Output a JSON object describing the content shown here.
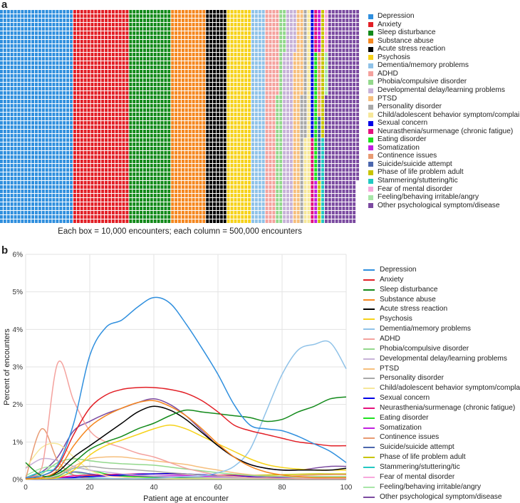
{
  "panels": {
    "a": "a",
    "b": "b"
  },
  "colors": [
    "#2f8fde",
    "#e21f26",
    "#128a1a",
    "#f5871f",
    "#000000",
    "#f6d21a",
    "#8fc2e8",
    "#f4a29e",
    "#93d88c",
    "#c7b2d8",
    "#f6bf7d",
    "#a9a9a9",
    "#f6e79a",
    "#0000e6",
    "#e5127d",
    "#1fe21f",
    "#c21fe0",
    "#e89a72",
    "#4c67ad",
    "#c8c400",
    "#23c8c2",
    "#f7a8dc",
    "#a8e6a8",
    "#7b4aa0"
  ],
  "chart_data": [
    {
      "type": "waffle",
      "caption": "Each box = 10,000 encounters; each column = 500,000 encounters",
      "rows": 50,
      "categories": [
        "Depression",
        "Anxiety",
        "Sleep disturbance",
        "Substance abuse",
        "Acute stress reaction",
        "Psychosis",
        "Dementia/memory problems",
        "ADHD",
        "Phobia/compulsive disorder",
        "Developmental delay/learning problems",
        "PTSD",
        "Personality disorder",
        "Child/adolescent behavior symptom/complaint",
        "Sexual concern",
        "Neurasthenia/surmenage (chronic fatigue)",
        "Eating disorder",
        "Somatization",
        "Continence issues",
        "Suicide/suicide attempt",
        "Phase of life problem adult",
        "Stammering/stuttering/tic",
        "Fear of mental disorder",
        "Feeling/behaving irritable/angry",
        "Other psychological symptom/disease"
      ],
      "boxes": [
        1050,
        800,
        600,
        500,
        300,
        350,
        200,
        170,
        90,
        150,
        110,
        60,
        70,
        30,
        30,
        30,
        20,
        15,
        15,
        40,
        20,
        10,
        10,
        470
      ]
    },
    {
      "type": "line",
      "xlabel": "Patient age at encounter",
      "ylabel": "Percent of encounters",
      "xlim": [
        0,
        100
      ],
      "ylim": [
        0,
        6
      ],
      "xticks": [
        0,
        20,
        40,
        60,
        80,
        100
      ],
      "yticks": [
        0,
        1,
        2,
        3,
        4,
        5,
        6
      ],
      "ytick_labels": [
        "0%",
        "1%",
        "2%",
        "3%",
        "4%",
        "5%",
        "6%"
      ],
      "x": [
        0,
        5,
        10,
        15,
        20,
        25,
        30,
        35,
        40,
        45,
        50,
        55,
        60,
        65,
        70,
        75,
        80,
        85,
        90,
        95,
        100
      ],
      "series": [
        {
          "name": "Depression",
          "values": [
            0.05,
            0.1,
            0.4,
            1.5,
            3.3,
            4.05,
            4.25,
            4.6,
            4.85,
            4.7,
            4.15,
            3.5,
            2.8,
            2.0,
            1.45,
            1.35,
            1.3,
            1.15,
            0.95,
            0.75,
            0.45
          ]
        },
        {
          "name": "Anxiety",
          "values": [
            0.05,
            0.1,
            0.35,
            1.2,
            1.9,
            2.25,
            2.4,
            2.45,
            2.45,
            2.4,
            2.3,
            2.1,
            1.8,
            1.45,
            1.3,
            1.2,
            1.1,
            1.0,
            0.95,
            0.9,
            0.9
          ]
        },
        {
          "name": "Sleep disturbance",
          "values": [
            0.45,
            0.1,
            0.15,
            0.45,
            0.8,
            1.0,
            1.15,
            1.35,
            1.5,
            1.7,
            1.85,
            1.8,
            1.75,
            1.7,
            1.65,
            1.55,
            1.6,
            1.8,
            1.95,
            2.15,
            2.2
          ]
        },
        {
          "name": "Substance abuse",
          "values": [
            0.02,
            0.05,
            0.25,
            0.9,
            1.4,
            1.7,
            1.9,
            2.05,
            2.1,
            1.95,
            1.7,
            1.35,
            0.95,
            0.6,
            0.35,
            0.2,
            0.12,
            0.08,
            0.05,
            0.05,
            0.05
          ]
        },
        {
          "name": "Acute stress reaction",
          "values": [
            0.02,
            0.05,
            0.2,
            0.6,
            0.9,
            1.2,
            1.5,
            1.8,
            1.95,
            1.85,
            1.6,
            1.25,
            0.9,
            0.6,
            0.4,
            0.3,
            0.25,
            0.25,
            0.25,
            0.25,
            0.3
          ]
        },
        {
          "name": "Psychosis",
          "values": [
            0.01,
            0.02,
            0.05,
            0.25,
            0.65,
            0.9,
            1.05,
            1.2,
            1.35,
            1.45,
            1.35,
            1.15,
            0.95,
            0.75,
            0.55,
            0.4,
            0.32,
            0.28,
            0.25,
            0.25,
            0.25
          ]
        },
        {
          "name": "Dementia/memory problems",
          "values": [
            0.02,
            0.02,
            0.02,
            0.02,
            0.02,
            0.02,
            0.02,
            0.02,
            0.03,
            0.05,
            0.08,
            0.1,
            0.18,
            0.35,
            0.8,
            1.8,
            2.8,
            3.45,
            3.6,
            3.65,
            2.95
          ]
        },
        {
          "name": "ADHD",
          "values": [
            0.05,
            0.3,
            3.1,
            2.1,
            1.3,
            1.0,
            0.85,
            0.7,
            0.6,
            0.45,
            0.3,
            0.2,
            0.12,
            0.08,
            0.05,
            0.04,
            0.03,
            0.02,
            0.02,
            0.02,
            0.02
          ]
        },
        {
          "name": "Phobia/compulsive disorder",
          "values": [
            0.02,
            0.15,
            0.45,
            0.55,
            0.5,
            0.45,
            0.42,
            0.4,
            0.38,
            0.33,
            0.28,
            0.23,
            0.18,
            0.14,
            0.11,
            0.09,
            0.08,
            0.07,
            0.06,
            0.06,
            0.06
          ]
        },
        {
          "name": "Developmental delay/learning problems",
          "values": [
            0.3,
            0.55,
            0.5,
            0.35,
            0.25,
            0.2,
            0.15,
            0.12,
            0.1,
            0.08,
            0.07,
            0.06,
            0.05,
            0.04,
            0.04,
            0.03,
            0.03,
            0.03,
            0.03,
            0.03,
            0.03
          ]
        },
        {
          "name": "PTSD",
          "values": [
            0.01,
            0.05,
            0.15,
            0.35,
            0.55,
            0.6,
            0.6,
            0.55,
            0.5,
            0.45,
            0.4,
            0.32,
            0.25,
            0.18,
            0.13,
            0.1,
            0.08,
            0.06,
            0.05,
            0.05,
            0.05
          ]
        },
        {
          "name": "Personality disorder",
          "values": [
            0.01,
            0.02,
            0.1,
            0.3,
            0.35,
            0.3,
            0.28,
            0.25,
            0.22,
            0.18,
            0.15,
            0.12,
            0.09,
            0.07,
            0.05,
            0.04,
            0.03,
            0.03,
            0.02,
            0.02,
            0.02
          ]
        },
        {
          "name": "Child/adolescent behavior symptom/complaint",
          "values": [
            0.3,
            0.85,
            0.95,
            0.6,
            0.25,
            0.1,
            0.06,
            0.04,
            0.03,
            0.02,
            0.02,
            0.02,
            0.02,
            0.02,
            0.02,
            0.02,
            0.02,
            0.02,
            0.02,
            0.02,
            0.02
          ]
        },
        {
          "name": "Sexual concern",
          "values": [
            0.01,
            0.01,
            0.02,
            0.05,
            0.08,
            0.1,
            0.12,
            0.14,
            0.15,
            0.16,
            0.15,
            0.13,
            0.11,
            0.09,
            0.07,
            0.05,
            0.04,
            0.03,
            0.02,
            0.02,
            0.02
          ]
        },
        {
          "name": "Neurasthenia/surmenage (chronic fatigue)",
          "values": [
            0.01,
            0.02,
            0.05,
            0.1,
            0.12,
            0.13,
            0.14,
            0.15,
            0.15,
            0.15,
            0.14,
            0.13,
            0.12,
            0.11,
            0.1,
            0.09,
            0.08,
            0.07,
            0.06,
            0.06,
            0.06
          ]
        },
        {
          "name": "Eating disorder",
          "values": [
            0.01,
            0.02,
            0.08,
            0.3,
            0.25,
            0.15,
            0.1,
            0.07,
            0.05,
            0.04,
            0.03,
            0.03,
            0.02,
            0.02,
            0.02,
            0.02,
            0.02,
            0.02,
            0.02,
            0.02,
            0.02
          ]
        },
        {
          "name": "Somatization",
          "values": [
            0.01,
            0.02,
            0.04,
            0.06,
            0.08,
            0.09,
            0.1,
            0.1,
            0.1,
            0.1,
            0.1,
            0.09,
            0.08,
            0.07,
            0.06,
            0.05,
            0.05,
            0.05,
            0.05,
            0.05,
            0.05
          ]
        },
        {
          "name": "Continence issues",
          "values": [
            0.02,
            1.35,
            0.5,
            0.12,
            0.03,
            0.02,
            0.02,
            0.02,
            0.02,
            0.02,
            0.02,
            0.03,
            0.03,
            0.04,
            0.05,
            0.06,
            0.08,
            0.1,
            0.12,
            0.13,
            0.13
          ]
        },
        {
          "name": "Suicide/suicide attempt",
          "values": [
            0.01,
            0.01,
            0.05,
            0.2,
            0.15,
            0.1,
            0.08,
            0.07,
            0.06,
            0.05,
            0.04,
            0.03,
            0.03,
            0.02,
            0.02,
            0.02,
            0.02,
            0.02,
            0.02,
            0.02,
            0.02
          ]
        },
        {
          "name": "Phase of life problem adult",
          "values": [
            0.01,
            0.01,
            0.02,
            0.05,
            0.1,
            0.12,
            0.13,
            0.14,
            0.15,
            0.15,
            0.14,
            0.13,
            0.12,
            0.12,
            0.12,
            0.12,
            0.13,
            0.14,
            0.15,
            0.15,
            0.15
          ]
        },
        {
          "name": "Stammering/stuttering/tic",
          "values": [
            0.05,
            0.2,
            0.25,
            0.12,
            0.05,
            0.03,
            0.02,
            0.02,
            0.02,
            0.02,
            0.02,
            0.02,
            0.02,
            0.02,
            0.02,
            0.02,
            0.02,
            0.02,
            0.02,
            0.02,
            0.02
          ]
        },
        {
          "name": "Fear of mental disorder",
          "values": [
            0.01,
            0.02,
            0.04,
            0.06,
            0.07,
            0.08,
            0.08,
            0.08,
            0.08,
            0.07,
            0.07,
            0.06,
            0.06,
            0.05,
            0.05,
            0.05,
            0.05,
            0.05,
            0.05,
            0.05,
            0.05
          ]
        },
        {
          "name": "Feeling/behaving irritable/angry",
          "values": [
            0.1,
            0.3,
            0.35,
            0.2,
            0.12,
            0.1,
            0.09,
            0.08,
            0.07,
            0.06,
            0.05,
            0.05,
            0.05,
            0.05,
            0.05,
            0.05,
            0.06,
            0.07,
            0.08,
            0.08,
            0.08
          ]
        },
        {
          "name": "Other psychological symptom/disease",
          "values": [
            0.05,
            0.2,
            0.6,
            1.3,
            1.55,
            1.75,
            1.9,
            2.05,
            2.15,
            2.0,
            1.7,
            1.3,
            0.9,
            0.6,
            0.4,
            0.3,
            0.25,
            0.25,
            0.3,
            0.35,
            0.35
          ]
        }
      ]
    }
  ]
}
